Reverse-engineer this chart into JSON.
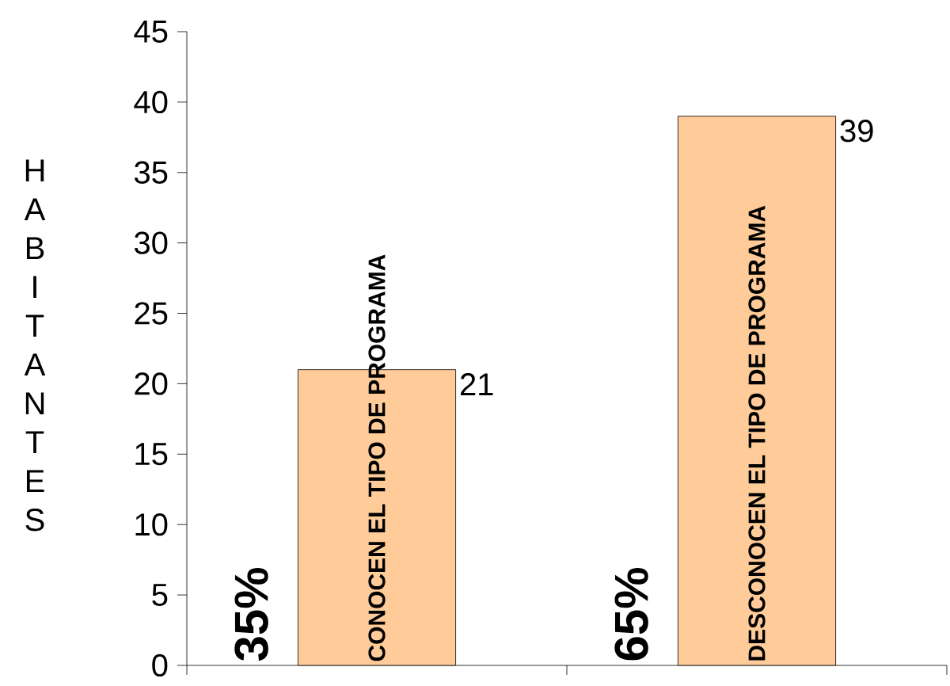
{
  "chart_data": {
    "type": "bar",
    "ylabel": "HABITANTES",
    "categories": [
      "CONOCEN EL TIPO DE PROGRAMA",
      "DESCONOCEN EL TIPO DE PROGRAMA"
    ],
    "values": [
      21,
      39
    ],
    "color": "#ffcc99",
    "ylim": [
      0,
      45
    ],
    "yticks": [
      0,
      5,
      10,
      15,
      20,
      25,
      30,
      35,
      40,
      45
    ],
    "data_labels": true,
    "annotations": [
      "35%",
      "65%"
    ]
  }
}
